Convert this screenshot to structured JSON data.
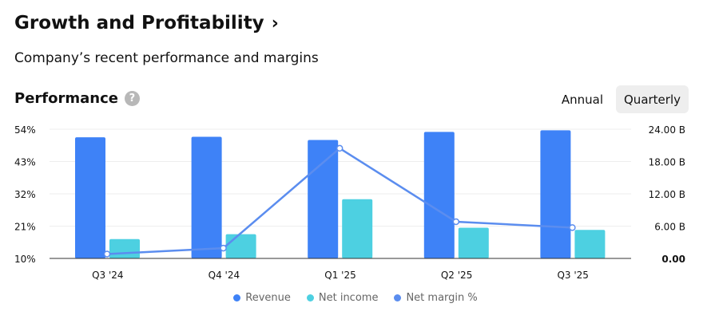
{
  "header": {
    "title": "Growth and Profitability",
    "chevron": "›",
    "subtitle": "Company’s recent performance and margins"
  },
  "section": {
    "title": "Performance",
    "help_icon": "?"
  },
  "toggle": {
    "annual": "Annual",
    "quarterly": "Quarterly",
    "active": "quarterly"
  },
  "colors": {
    "revenue": "#3e82f7",
    "net_income": "#4dd0e1",
    "net_margin": "#5b8def"
  },
  "chart_data": {
    "type": "bar",
    "categories": [
      "Q3 '24",
      "Q4 '24",
      "Q1 '25",
      "Q2 '25",
      "Q3 '25"
    ],
    "series": [
      {
        "name": "Revenue",
        "axis": "right",
        "type": "bar",
        "values": [
          22.5,
          22.6,
          22.0,
          23.5,
          23.8
        ]
      },
      {
        "name": "Net income",
        "axis": "right",
        "type": "bar",
        "values": [
          3.6,
          4.5,
          11.0,
          5.7,
          5.3
        ]
      },
      {
        "name": "Net margin %",
        "axis": "left",
        "type": "line",
        "values": [
          11.5,
          13.5,
          47.5,
          22.5,
          20.5
        ]
      }
    ],
    "y_left": {
      "ticks": [
        "54%",
        "43%",
        "32%",
        "21%",
        "10%"
      ],
      "range": [
        10,
        54
      ]
    },
    "y_right": {
      "ticks": [
        "24.00 B",
        "18.00 B",
        "12.00 B",
        "6.00 B",
        "0.00"
      ],
      "range": [
        0,
        24
      ]
    },
    "legend": [
      "Revenue",
      "Net income",
      "Net margin %"
    ],
    "grid": true,
    "legend_position": "bottom"
  }
}
